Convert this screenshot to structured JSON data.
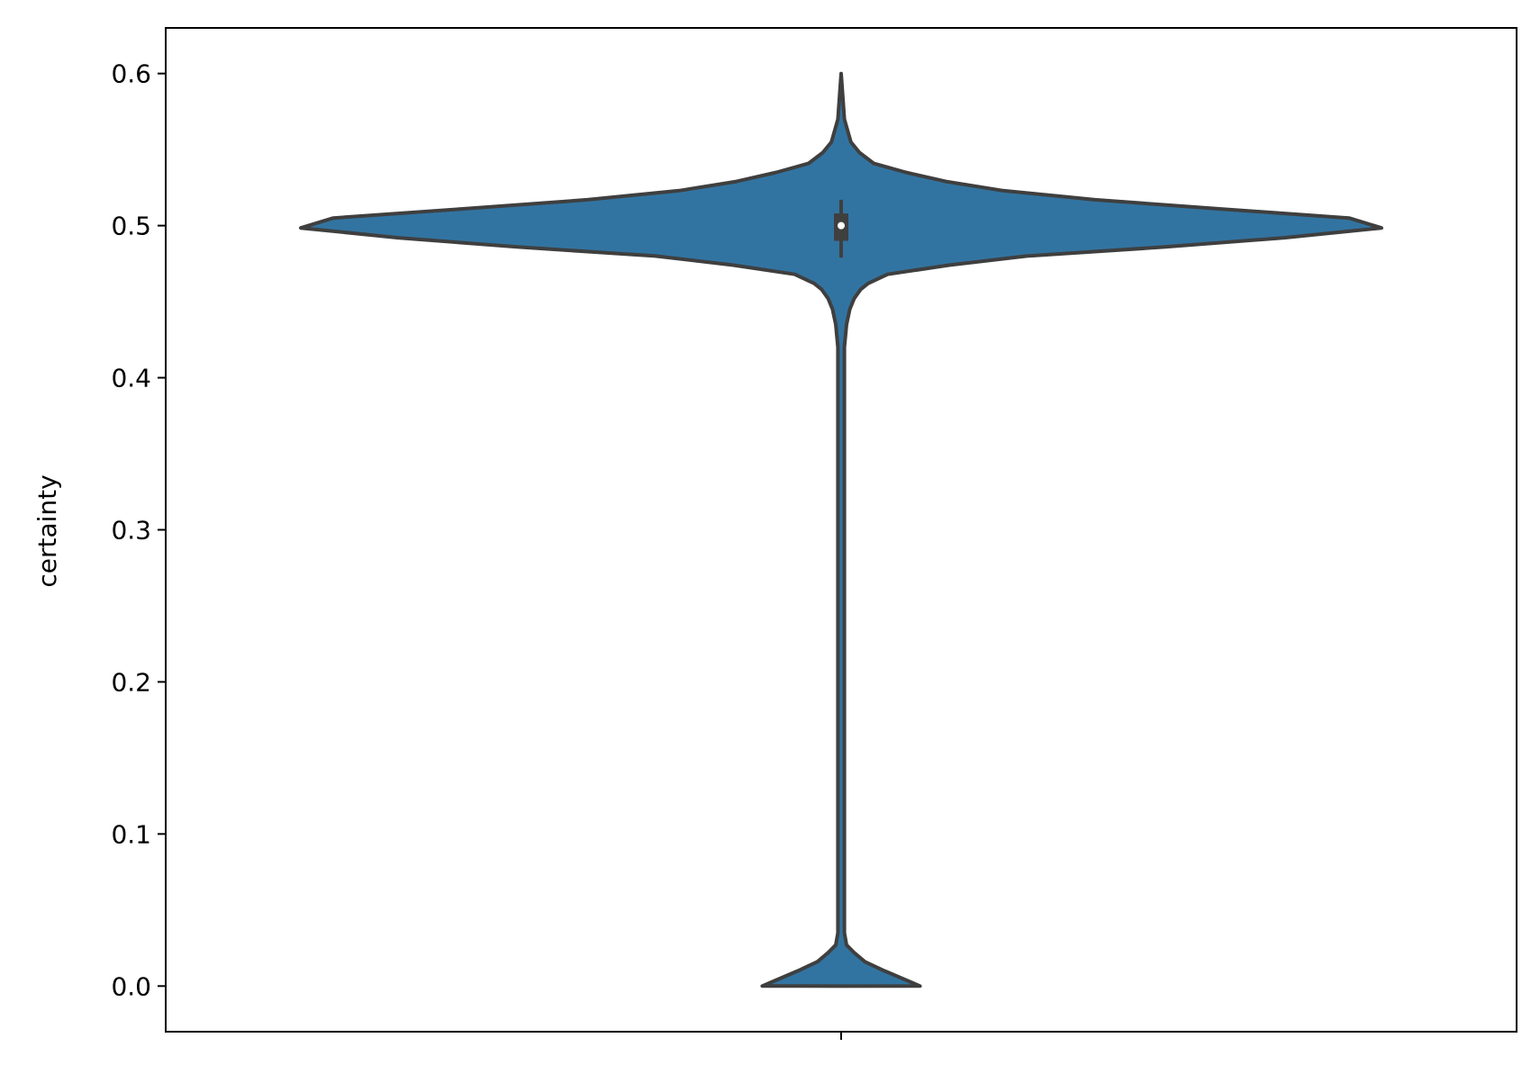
{
  "chart_data": {
    "type": "violin",
    "ylabel": "certainty",
    "xlabel": "",
    "ylim": [
      -0.03,
      0.63
    ],
    "yticks": [
      0.0,
      0.1,
      0.2,
      0.3,
      0.4,
      0.5,
      0.6
    ],
    "ytick_labels": [
      "0.0",
      "0.1",
      "0.2",
      "0.3",
      "0.4",
      "0.5",
      "0.6"
    ],
    "xticks": [
      ""
    ],
    "grid": false,
    "legend": "none",
    "colors": {
      "violin_fill": "#3274a1",
      "outline": "#3f3f3f",
      "median": "#ffffff"
    },
    "median": 0.5,
    "quartiles": [
      0.49,
      0.508
    ],
    "whiskers": [
      0.479,
      0.517
    ],
    "density_max_halfwidth": 0.5,
    "density_profile": [
      [
        0.0,
        0.073
      ],
      [
        0.004,
        0.06
      ],
      [
        0.01,
        0.04
      ],
      [
        0.016,
        0.022
      ],
      [
        0.022,
        0.012
      ],
      [
        0.027,
        0.005
      ],
      [
        0.035,
        0.003
      ],
      [
        0.1,
        0.003
      ],
      [
        0.2,
        0.003
      ],
      [
        0.3,
        0.003
      ],
      [
        0.4,
        0.003
      ],
      [
        0.42,
        0.003
      ],
      [
        0.435,
        0.005
      ],
      [
        0.445,
        0.008
      ],
      [
        0.452,
        0.012
      ],
      [
        0.458,
        0.018
      ],
      [
        0.462,
        0.025
      ],
      [
        0.468,
        0.043
      ],
      [
        0.474,
        0.1
      ],
      [
        0.48,
        0.172
      ],
      [
        0.486,
        0.3
      ],
      [
        0.492,
        0.41
      ],
      [
        0.4985,
        0.5
      ],
      [
        0.505,
        0.47
      ],
      [
        0.511,
        0.35
      ],
      [
        0.517,
        0.235
      ],
      [
        0.523,
        0.15
      ],
      [
        0.529,
        0.097
      ],
      [
        0.535,
        0.06
      ],
      [
        0.541,
        0.03
      ],
      [
        0.548,
        0.017
      ],
      [
        0.555,
        0.009
      ],
      [
        0.57,
        0.003
      ],
      [
        0.6,
        0.0
      ]
    ]
  }
}
